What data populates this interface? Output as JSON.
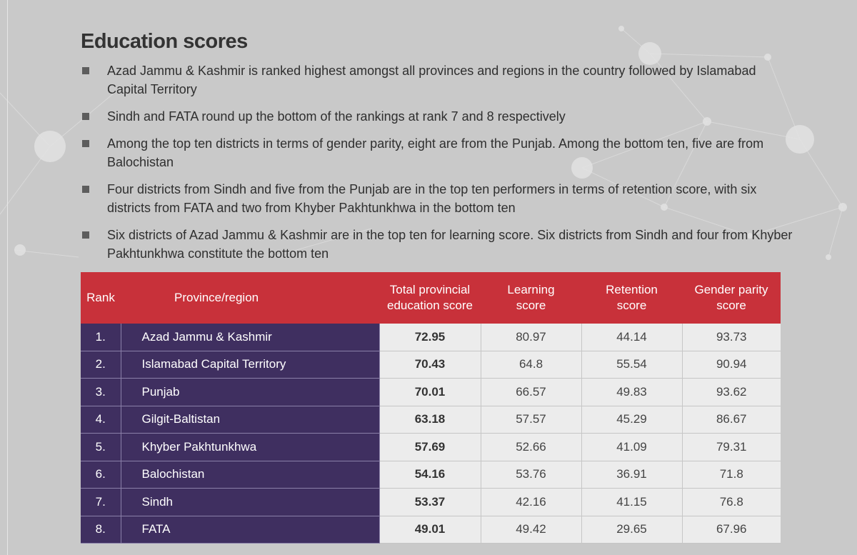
{
  "page": {
    "heading": "Education scores",
    "bullets": [
      "Azad Jammu & Kashmir is ranked highest amongst all provinces and regions in the country followed by Islamabad Capital Territory",
      "Sindh and FATA round up the bottom of the rankings at rank 7 and 8 respectively",
      "Among the top ten districts in terms of gender parity, eight are from the Punjab. Among the bottom ten, five are from Balochistan",
      "Four districts from Sindh and five from the Punjab are in the top ten performers in terms of retention score, with six districts from FATA and two from Khyber Pakhtunkhwa in the bottom ten",
      "Six districts of Azad Jammu & Kashmir are in the top ten for learning score. Six districts from Sindh and four from Khyber Pakhtunkhwa constitute the bottom ten"
    ]
  },
  "table": {
    "headers": {
      "rank": "Rank",
      "region": "Province/region",
      "total_line1": "Total provincial",
      "total_line2": "education score",
      "learning_line1": "Learning",
      "learning_line2": "score",
      "retention_line1": "Retention",
      "retention_line2": "score",
      "gender_line1": "Gender parity",
      "gender_line2": "score"
    },
    "rows": [
      {
        "rank": "1.",
        "region": "Azad Jammu & Kashmir",
        "total": "72.95",
        "learning": "80.97",
        "retention": "44.14",
        "gender": "93.73"
      },
      {
        "rank": "2.",
        "region": "Islamabad Capital Territory",
        "total": "70.43",
        "learning": "64.8",
        "retention": "55.54",
        "gender": "90.94"
      },
      {
        "rank": "3.",
        "region": "Punjab",
        "total": "70.01",
        "learning": "66.57",
        "retention": "49.83",
        "gender": "93.62"
      },
      {
        "rank": "4.",
        "region": "Gilgit-Baltistan",
        "total": "63.18",
        "learning": "57.57",
        "retention": "45.29",
        "gender": "86.67"
      },
      {
        "rank": "5.",
        "region": "Khyber Pakhtunkhwa",
        "total": "57.69",
        "learning": "52.66",
        "retention": "41.09",
        "gender": "79.31"
      },
      {
        "rank": "6.",
        "region": "Balochistan",
        "total": "54.16",
        "learning": "53.76",
        "retention": "36.91",
        "gender": "71.8"
      },
      {
        "rank": "7.",
        "region": "Sindh",
        "total": "53.37",
        "learning": "42.16",
        "retention": "41.15",
        "gender": "76.8"
      },
      {
        "rank": "8.",
        "region": "FATA",
        "total": "49.01",
        "learning": "49.42",
        "retention": "29.65",
        "gender": "67.96"
      }
    ]
  },
  "colors": {
    "header_red": "#c8313a",
    "rank_purple": "#3f2f60",
    "background_grey": "#c9c9c9"
  }
}
